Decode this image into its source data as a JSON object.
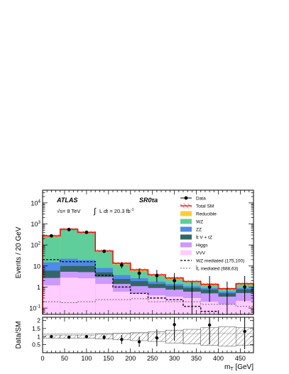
{
  "chart_data": {
    "type": "bar",
    "experiment": "ATLAS",
    "energy_label": "√s= 8 TeV",
    "lumi_label": "L dt = 20.3 fb",
    "lumi_exponent": "-1",
    "integral_symbol": "∫",
    "region_label": "SR0τa",
    "xlabel": "m",
    "xlabel_sub": "T",
    "xlabel_unit": " [GeV]",
    "ylabel": "Events / 20 GeV",
    "ratio_ylabel": "Data/SM",
    "xlim": [
      0,
      480
    ],
    "ylim": [
      0.05,
      40000
    ],
    "log_y": true,
    "ratio_ylim": [
      0,
      2.2
    ],
    "x_ticks": [
      "0",
      "50",
      "100",
      "150",
      "200",
      "250",
      "300",
      "350",
      "400",
      "450"
    ],
    "y_ticks": [
      {
        "base": "10",
        "exp": "-1",
        "v": 0.1
      },
      {
        "base": "1",
        "exp": "",
        "v": 1
      },
      {
        "base": "10",
        "exp": "",
        "v": 10
      },
      {
        "base": "10",
        "exp": "2",
        "v": 100
      },
      {
        "base": "10",
        "exp": "3",
        "v": 1000
      },
      {
        "base": "10",
        "exp": "4",
        "v": 10000
      }
    ],
    "ratio_y_ticks": [
      "0.5",
      "1",
      "1.5",
      "2"
    ],
    "ratio_y_tick_values": [
      0.5,
      1,
      1.5,
      2
    ],
    "bin_edges": [
      0,
      40,
      80,
      120,
      160,
      200,
      240,
      280,
      320,
      360,
      400,
      440,
      480
    ],
    "stack": [
      {
        "name": "VVV",
        "color": "#ffccff",
        "values": [
          1.2,
          2.8,
          2.6,
          1.4,
          0.6,
          0.5,
          0.4,
          0.35,
          0.3,
          0.2,
          0.15,
          0.22
        ]
      },
      {
        "name": "Higgs",
        "color": "#cc99ff",
        "values": [
          1.5,
          2.5,
          2.5,
          1.6,
          0.8,
          0.6,
          0.5,
          0.4,
          0.3,
          0.3,
          0.2,
          0.3
        ]
      },
      {
        "name": "tt V + tZ",
        "label_display": "t̄t V + tZ",
        "color": "#336666",
        "values": [
          3.3,
          4.7,
          4.9,
          2.0,
          1.0,
          0.8,
          0.5,
          0.4,
          0.3,
          0.25,
          0.15,
          0.25
        ]
      },
      {
        "name": "ZZ",
        "color": "#4f8ae8",
        "values": [
          9,
          12,
          9,
          3,
          1.3,
          0.7,
          0.4,
          0.25,
          0.2,
          0.15,
          0.1,
          0.13
        ]
      },
      {
        "name": "WZ",
        "color": "#5fce9a",
        "values": [
          230,
          510,
          360,
          38,
          8,
          3.2,
          1.6,
          1.0,
          0.6,
          0.3,
          0.15,
          0.4
        ]
      },
      {
        "name": "Reducible",
        "color": "#ffcc33",
        "values": [
          25,
          28,
          22,
          6,
          1.8,
          0.8,
          0.4,
          0.3,
          0.15,
          0.15,
          0.08,
          0.15
        ]
      }
    ],
    "total_sm": [
      270,
      560,
      400,
      52,
      13.5,
      6.6,
      3.8,
      2.7,
      1.85,
      1.35,
      0.83,
      1.45
    ],
    "data": {
      "name": "Data",
      "x": [
        20,
        60,
        100,
        140,
        180,
        220,
        260,
        300,
        340,
        380,
        420,
        460
      ],
      "y": [
        270,
        540,
        400,
        50,
        11,
        4.5,
        3.5,
        2.0,
        0.0,
        1.0,
        0.0,
        1.0
      ],
      "err_lo": [
        16,
        23,
        20,
        7,
        3.3,
        2.1,
        1.8,
        1.3,
        0,
        0.8,
        0,
        0.8
      ],
      "err_hi": [
        17,
        24,
        21,
        8,
        4.3,
        3.3,
        3.0,
        2.6,
        1.8,
        2.3,
        1.8,
        2.3
      ]
    },
    "ratio": {
      "x": [
        20,
        60,
        100,
        140,
        180,
        220,
        260,
        300,
        340,
        380,
        420,
        460
      ],
      "y": [
        1.0,
        0.96,
        1.0,
        0.96,
        0.82,
        0.68,
        0.92,
        1.74,
        null,
        1.72,
        null,
        1.32
      ],
      "err": [
        0.07,
        0.05,
        0.05,
        0.15,
        0.28,
        0.32,
        0.52,
        1.0,
        0,
        1.2,
        0,
        1.1
      ],
      "band": [
        0.1,
        0.1,
        0.1,
        0.15,
        0.2,
        0.25,
        0.3,
        0.4,
        0.45,
        0.55,
        0.6,
        0.55
      ]
    },
    "signal_wz": {
      "name": "WZ mediated (175,100)",
      "values": [
        20,
        16,
        16,
        3.6,
        1.0,
        0.5,
        0.3,
        0.25,
        0.12,
        0.07,
        0.05,
        0.05
      ]
    },
    "signal_slep": {
      "name": "l̃L mediated (688,63)",
      "values": [
        0.2,
        0.18,
        0.2,
        0.25,
        0.25,
        0.28,
        0.2,
        0.2,
        0.2,
        0.15,
        0.15,
        0.12
      ]
    },
    "legend": [
      {
        "label": "Data",
        "kind": "data"
      },
      {
        "label": "Total SM",
        "kind": "total"
      },
      {
        "label": "Reducible",
        "kind": "box",
        "color": "#ffcc33"
      },
      {
        "label": "WZ",
        "kind": "box",
        "color": "#5fce9a"
      },
      {
        "label": "ZZ",
        "kind": "box",
        "color": "#4f8ae8"
      },
      {
        "label": "t̄t V + tZ",
        "kind": "box",
        "color": "#336666"
      },
      {
        "label": "Higgs",
        "kind": "box",
        "color": "#cc99ff"
      },
      {
        "label": "VVV",
        "kind": "box",
        "color": "#ffccff"
      },
      {
        "label": "WZ mediated (175,100)",
        "kind": "dash-black"
      },
      {
        "label": "l̃L mediated (688,63)",
        "kind": "dash-grey"
      }
    ],
    "legend_position": "top-right",
    "total_sm_color": "#ee1111"
  }
}
